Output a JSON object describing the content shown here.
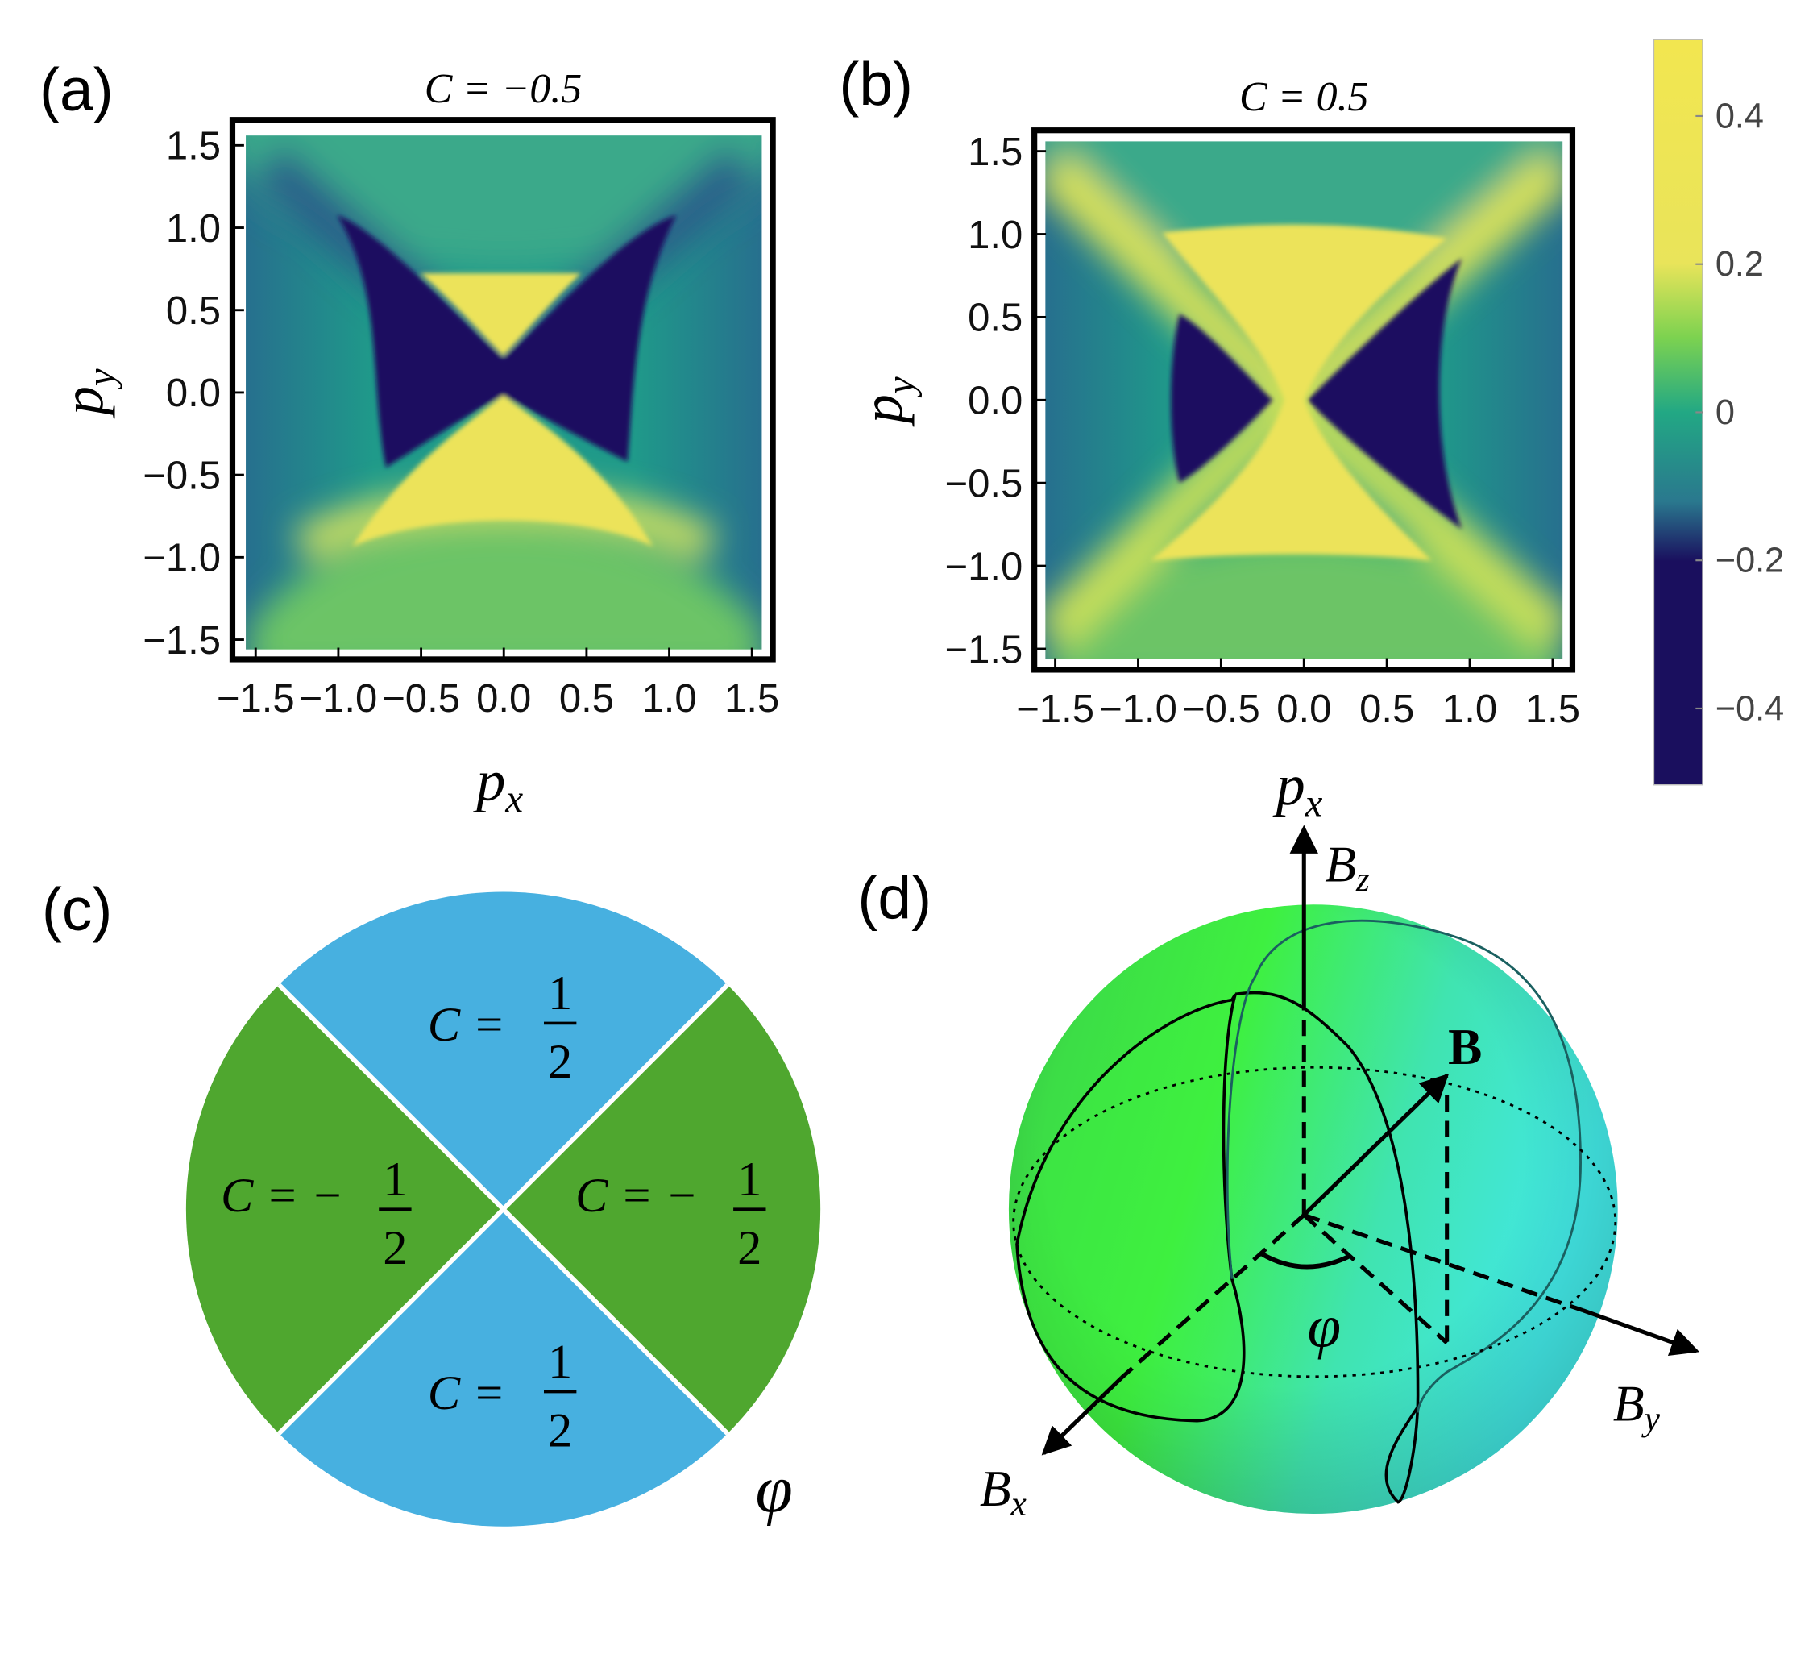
{
  "panels": {
    "a": {
      "label": "(a)",
      "title": "C = −0.5",
      "xlabel": {
        "base": "p",
        "sub": "x"
      },
      "ylabel": {
        "base": "p",
        "sub": "y"
      },
      "xlim": [
        -1.57,
        1.57
      ],
      "ylim": [
        -1.57,
        1.57
      ],
      "xticks": [
        {
          "value": -1.5,
          "label": "−1.5"
        },
        {
          "value": -1,
          "label": "−1.0"
        },
        {
          "value": -0.5,
          "label": "−0.5"
        },
        {
          "value": 0,
          "label": "0.0"
        },
        0.5,
        {
          "value": 1,
          "label": "1.0"
        },
        1.5
      ],
      "yticks": [
        {
          "value": -1.5,
          "label": "−1.5"
        },
        {
          "value": -1,
          "label": "−1.0"
        },
        {
          "value": -0.5,
          "label": "−0.5"
        },
        {
          "value": 0,
          "label": "0.0"
        },
        0.5,
        {
          "value": 1,
          "label": "1.0"
        },
        1.5
      ]
    },
    "b": {
      "label": "(b)",
      "title": "C = 0.5",
      "xlabel": {
        "base": "p",
        "sub": "x"
      },
      "ylabel": {
        "base": "p",
        "sub": "y"
      },
      "xlim": [
        -1.57,
        1.57
      ],
      "ylim": [
        -1.57,
        1.57
      ],
      "xticks": [
        {
          "value": -1.5,
          "label": "−1.5"
        },
        {
          "value": -1,
          "label": "−1.0"
        },
        {
          "value": -0.5,
          "label": "−0.5"
        },
        {
          "value": 0,
          "label": "0.0"
        },
        0.5,
        {
          "value": 1,
          "label": "1.0"
        },
        1.5
      ],
      "yticks": [
        {
          "value": -1.5,
          "label": "−1.5"
        },
        {
          "value": -1,
          "label": "−1.0"
        },
        {
          "value": -0.5,
          "label": "−0.5"
        },
        {
          "value": 0,
          "label": "0.0"
        },
        0.5,
        {
          "value": 1,
          "label": "1.0"
        },
        1.5
      ]
    },
    "c": {
      "label": "(c)",
      "phi": "φ",
      "sectors": [
        {
          "lhs": "C =",
          "num": "1",
          "den": "2"
        },
        {
          "lhs": "C = −",
          "num": "1",
          "den": "2"
        },
        {
          "lhs": "C = −",
          "num": "1",
          "den": "2"
        },
        {
          "lhs": "C =",
          "num": "1",
          "den": "2"
        }
      ]
    },
    "d": {
      "label": "(d)",
      "b": "B",
      "phi": "φ",
      "bz": {
        "base": "B",
        "sub": "z"
      },
      "by": {
        "base": "B",
        "sub": "y"
      },
      "bx": {
        "base": "B",
        "sub": "x"
      }
    }
  },
  "colorbar": {
    "clim": [
      -0.5,
      0.5
    ],
    "ticks": [
      0.4,
      0.2,
      0,
      {
        "value": -0.2,
        "label": "−0.2"
      },
      {
        "value": -0.4,
        "label": "−0.4"
      }
    ]
  }
}
